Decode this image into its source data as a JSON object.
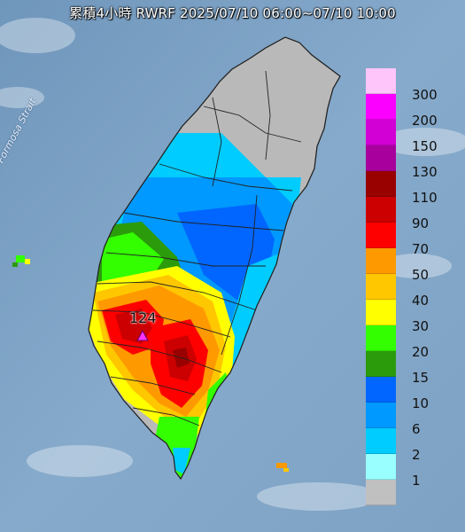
{
  "title": "累積4小時 RWRF 2025/07/10 06:00~07/10 10:00",
  "strait_label": "Formosa Strait",
  "max_marker": {
    "value": "124",
    "icon": "triangle-marker-icon"
  },
  "legend": [
    {
      "label": "300",
      "color": "#fdc5f9"
    },
    {
      "label": "200",
      "color": "#fb00ff"
    },
    {
      "label": "150",
      "color": "#d200d4"
    },
    {
      "label": "130",
      "color": "#a8009c"
    },
    {
      "label": "110",
      "color": "#990000"
    },
    {
      "label": "90",
      "color": "#cc0000"
    },
    {
      "label": "70",
      "color": "#ff0000"
    },
    {
      "label": "50",
      "color": "#ff9900"
    },
    {
      "label": "40",
      "color": "#ffc700"
    },
    {
      "label": "30",
      "color": "#ffff00"
    },
    {
      "label": "20",
      "color": "#33ff00"
    },
    {
      "label": "15",
      "color": "#2b9b0b"
    },
    {
      "label": "10",
      "color": "#0066ff"
    },
    {
      "label": "6",
      "color": "#0099ff"
    },
    {
      "label": "2",
      "color": "#00ccff"
    },
    {
      "label": "1",
      "color": "#99ffff"
    },
    {
      "label": "",
      "color": "#c0c0c0"
    }
  ]
}
